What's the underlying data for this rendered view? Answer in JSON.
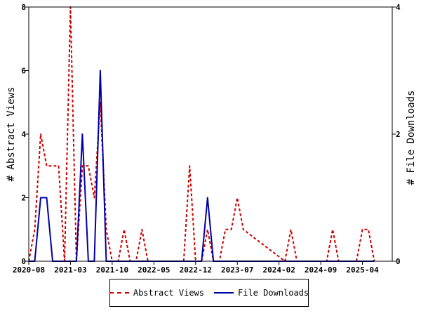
{
  "chart_data": {
    "type": "line",
    "xlabel": "",
    "x_tick_labels": [
      "2020-08",
      "2021-03",
      "2021-10",
      "2022-05",
      "2022-12",
      "2023-07",
      "2024-02",
      "2024-09",
      "2025-04"
    ],
    "y_left": {
      "label": "# Abstract Views",
      "lim": [
        0,
        8
      ],
      "ticks": [
        "0",
        "2",
        "4",
        "6",
        "8"
      ]
    },
    "y_right": {
      "label": "# File Downloads",
      "lim": [
        0,
        4
      ],
      "ticks": [
        "0",
        "2",
        "4"
      ]
    },
    "series": [
      {
        "name": "Abstract Views",
        "axis": "left",
        "color": "#cc0000",
        "style": "dashed",
        "x": [
          "2020-08",
          "2020-09",
          "2020-10",
          "2020-11",
          "2020-12",
          "2021-01",
          "2021-02",
          "2021-03",
          "2021-04",
          "2021-05",
          "2021-06",
          "2021-07",
          "2021-08",
          "2021-09",
          "2021-10",
          "2021-11",
          "2021-12",
          "2022-01",
          "2022-02",
          "2022-03",
          "2022-04",
          "2022-05",
          "2022-06",
          "2022-07",
          "2022-08",
          "2022-09",
          "2022-10",
          "2022-11",
          "2022-12",
          "2023-01",
          "2023-02",
          "2023-03",
          "2023-04",
          "2023-05",
          "2023-06",
          "2023-07",
          "2023-08",
          "2024-03",
          "2024-04",
          "2024-05",
          "2024-10",
          "2024-11",
          "2024-12",
          "2025-03",
          "2025-04",
          "2025-05",
          "2025-06"
        ],
        "values": [
          0,
          1,
          4,
          3,
          3,
          3,
          0,
          8,
          0,
          3,
          3,
          2,
          5,
          1,
          0,
          0,
          1,
          0,
          0,
          1,
          0,
          0,
          0,
          0,
          0,
          0,
          0,
          3,
          0,
          0,
          1,
          0,
          0,
          1,
          1,
          2,
          1,
          0,
          1,
          0,
          0,
          1,
          0,
          0,
          1,
          1,
          0
        ]
      },
      {
        "name": "File Downloads",
        "axis": "right",
        "color": "#0000aa",
        "style": "solid",
        "x": [
          "2020-08",
          "2020-09",
          "2020-10",
          "2020-11",
          "2020-12",
          "2021-01",
          "2021-02",
          "2021-03",
          "2021-04",
          "2021-05",
          "2021-06",
          "2021-07",
          "2021-08",
          "2021-09",
          "2021-10",
          "2023-01",
          "2023-02",
          "2023-03",
          "2023-04",
          "2025-06"
        ],
        "values": [
          0,
          0,
          1,
          1,
          0,
          0,
          0,
          0,
          0,
          2,
          0,
          0,
          3,
          0,
          0,
          0,
          1,
          0,
          0,
          0
        ]
      }
    ],
    "legend": {
      "position": "bottom",
      "entries": [
        "Abstract Views",
        "File Downloads"
      ]
    },
    "grid": false
  }
}
